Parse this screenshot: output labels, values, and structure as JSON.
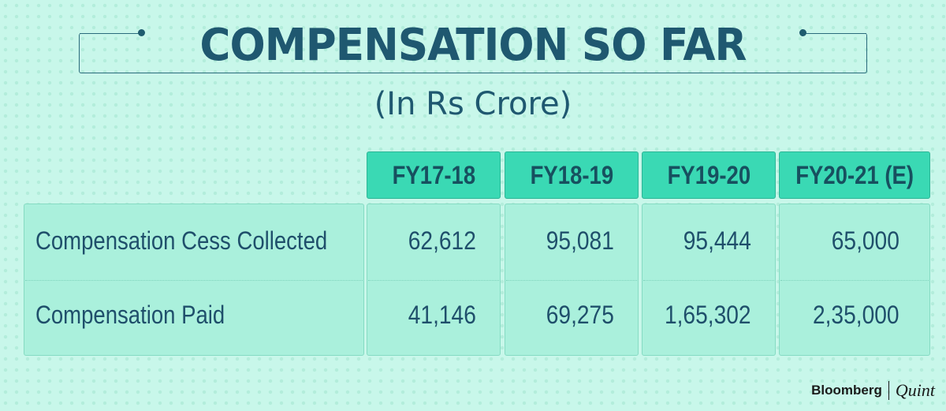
{
  "title": "COMPENSATION SO FAR",
  "subtitle": "(In Rs Crore)",
  "chart_data": {
    "type": "table",
    "title": "COMPENSATION SO FAR",
    "subtitle": "(In Rs Crore)",
    "columns": [
      "FY17-18",
      "FY18-19",
      "FY19-20",
      "FY20-21 (E)"
    ],
    "rows": [
      {
        "label": "Compensation Cess Collected",
        "values": [
          "62,612",
          "95,081",
          "95,444",
          "65,000"
        ]
      },
      {
        "label": "Compensation Paid",
        "values": [
          "41,146",
          "69,275",
          "1,65,302",
          "2,35,000"
        ]
      }
    ]
  },
  "branding": {
    "left": "Bloomberg",
    "right": "Quint"
  },
  "colors": {
    "background": "#c8f7ea",
    "header_fill": "#3ad9b4",
    "cell_fill": "#aaf0dc",
    "text": "#1f4f6b"
  }
}
